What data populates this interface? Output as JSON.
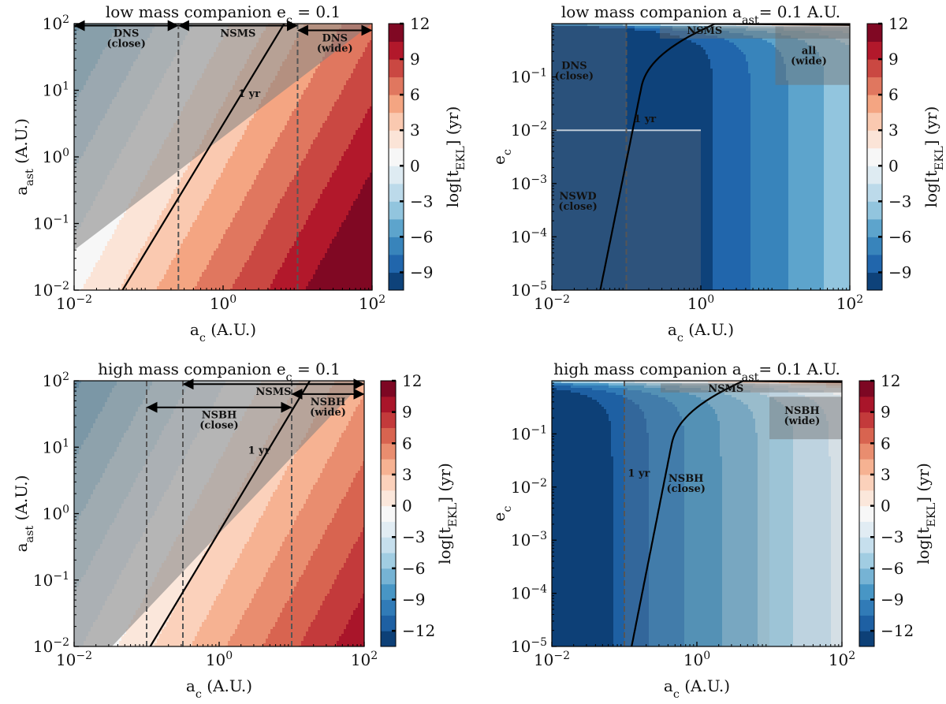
{
  "chart_data": [
    {
      "type": "heatmap",
      "panel": "top-left",
      "title": "low mass companion e_c = 0.1",
      "title_main": "low mass companion e",
      "title_sub": "c",
      "title_tail": " = 0.1",
      "xlabel_main": "a",
      "xlabel_sub": "c",
      "xlabel_tail": " (A.U.)",
      "ylabel_main": "a",
      "ylabel_sub": "ast",
      "ylabel_tail": " (A.U.)",
      "x_log_range": [
        -2,
        2
      ],
      "y_log_range": [
        -2,
        2
      ],
      "x_ticks": [
        {
          "base": "10",
          "exp": "−2",
          "v": -2
        },
        {
          "base": "10",
          "exp": "0",
          "v": 0
        },
        {
          "base": "10",
          "exp": "2",
          "v": 2
        }
      ],
      "y_ticks": [
        {
          "base": "10",
          "exp": "−2",
          "v": -2
        },
        {
          "base": "10",
          "exp": "−1",
          "v": -1
        },
        {
          "base": "10",
          "exp": "0",
          "v": 0
        },
        {
          "base": "10",
          "exp": "1",
          "v": 1
        },
        {
          "base": "10",
          "exp": "2",
          "v": 2
        }
      ],
      "model": "a",
      "offset": 4.2,
      "clim": [
        -10.5,
        12
      ],
      "levels": [
        -10.5,
        -9,
        -7.5,
        -6,
        -4.5,
        -3,
        -1.5,
        0,
        1.5,
        3,
        4.5,
        6,
        7.5,
        9,
        10.5,
        12
      ],
      "colorbar": {
        "label_main": "log[t",
        "label_sub": "EKL",
        "label_tail": "] (yr)",
        "ticks": [
          {
            "v": 12,
            "label": "12"
          },
          {
            "v": 9,
            "label": "9"
          },
          {
            "v": 6,
            "label": "6"
          },
          {
            "v": 3,
            "label": "3"
          },
          {
            "v": 0,
            "label": "0"
          },
          {
            "v": -3,
            "label": "−3"
          },
          {
            "v": -6,
            "label": "−6"
          },
          {
            "v": -9,
            "label": "−9"
          }
        ]
      },
      "one_yr_line": [
        [
          -1.35,
          -2
        ],
        [
          0.82,
          2
        ]
      ],
      "one_yr_label": "1 yr",
      "one_yr_label_at": [
        0.35,
        0.9
      ],
      "vlines": [
        -0.6,
        1.0
      ],
      "shaded_regions": [
        {
          "type": "upper-triangle",
          "x": [
            -2,
            2
          ],
          "boundary_y_at_xmin": -1.4,
          "boundary_y_at_xmax": 2,
          "x_from": -0.6
        }
      ],
      "arrows": [
        {
          "x1": -2,
          "x2": -0.6,
          "y": 1.97,
          "label": "DNS",
          "sub": "(close)"
        },
        {
          "x1": -0.6,
          "x2": 1.0,
          "y": 1.97,
          "label": "NSMS",
          "sub": ""
        },
        {
          "x1": 1.0,
          "x2": 2,
          "y": 1.9,
          "label": "DNS",
          "sub": "(wide)"
        }
      ],
      "boxes": []
    },
    {
      "type": "heatmap",
      "panel": "top-right",
      "title": "low mass companion a_ast = 0.1 A.U.",
      "title_main": "low mass companion a",
      "title_sub": "ast",
      "title_tail": "= 0.1 A.U.",
      "xlabel_main": "a",
      "xlabel_sub": "c",
      "xlabel_tail": " (A.U.)",
      "ylabel_main": "e",
      "ylabel_sub": "c",
      "ylabel_tail": "",
      "x_log_range": [
        -2,
        2
      ],
      "y_log_range": [
        -5,
        0
      ],
      "x_ticks": [
        {
          "base": "10",
          "exp": "−2",
          "v": -2
        },
        {
          "base": "10",
          "exp": "0",
          "v": 0
        },
        {
          "base": "10",
          "exp": "2",
          "v": 2
        }
      ],
      "y_ticks": [
        {
          "base": "10",
          "exp": "−5",
          "v": -5
        },
        {
          "base": "10",
          "exp": "−4",
          "v": -4
        },
        {
          "base": "10",
          "exp": "−3",
          "v": -3
        },
        {
          "base": "10",
          "exp": "−2",
          "v": -2
        },
        {
          "base": "10",
          "exp": "−1",
          "v": -1
        }
      ],
      "model": "e",
      "offset": -9.5,
      "clim": [
        -10.5,
        12
      ],
      "levels": [
        -10.5,
        -9,
        -7.5,
        -6,
        -4.5,
        -3,
        -1.5,
        0,
        1.5,
        3,
        4.5,
        6,
        7.5,
        9,
        10.5,
        12
      ],
      "colorbar": {
        "label_main": "log[t",
        "label_sub": "EKL",
        "label_tail": "] (yr)",
        "ticks": [
          {
            "v": 12,
            "label": "12"
          },
          {
            "v": 9,
            "label": "9"
          },
          {
            "v": 6,
            "label": "6"
          },
          {
            "v": 3,
            "label": "3"
          },
          {
            "v": 0,
            "label": "0"
          },
          {
            "v": -3,
            "label": "−3"
          },
          {
            "v": -6,
            "label": "−6"
          },
          {
            "v": -9,
            "label": "−9"
          }
        ]
      },
      "one_yr_curve_x0": -1.35,
      "one_yr_label": "1 yr",
      "one_yr_label_at": [
        -0.75,
        -1.85
      ],
      "vlines": [
        -1.0
      ],
      "shaded_regions": [
        {
          "type": "rect",
          "x": [
            -2,
            -1.0
          ],
          "y": [
            -5,
            0
          ],
          "opacity": 0.25
        },
        {
          "type": "rect",
          "x": [
            -1.0,
            0
          ],
          "y": [
            -5,
            -2.0
          ],
          "opacity": 0.28
        }
      ],
      "highlight_line_y": -2.0,
      "boxes": [
        {
          "x": [
            -0.55,
            2
          ],
          "y": [
            -0.28,
            -0.05
          ],
          "label": "NSMS",
          "sub": "",
          "label_at": [
            0.05,
            -0.12
          ]
        },
        {
          "x": [
            1.0,
            2
          ],
          "y": [
            -1.15,
            -0.05
          ],
          "label": "all",
          "sub": "(wide)",
          "label_at": [
            1.45,
            -0.6
          ]
        }
      ],
      "texts": [
        {
          "label": "DNS",
          "sub": "(close)",
          "at": [
            -1.7,
            -0.85
          ]
        },
        {
          "label": "NSWD",
          "sub": "(close)",
          "at": [
            -1.65,
            -3.3
          ]
        }
      ],
      "arrows": []
    },
    {
      "type": "heatmap",
      "panel": "bottom-left",
      "title": "high mass companion e_c = 0.1",
      "title_main": "high mass companion e",
      "title_sub": "c",
      "title_tail": " = 0.1",
      "xlabel_main": "a",
      "xlabel_sub": "c",
      "xlabel_tail": " (A.U.)",
      "ylabel_main": "a",
      "ylabel_sub": "ast",
      "ylabel_tail": " (A.U.)",
      "x_log_range": [
        -2,
        2
      ],
      "y_log_range": [
        -2,
        2
      ],
      "x_ticks": [
        {
          "base": "10",
          "exp": "−2",
          "v": -2
        },
        {
          "base": "10",
          "exp": "0",
          "v": 0
        },
        {
          "base": "10",
          "exp": "2",
          "v": 2
        }
      ],
      "y_ticks": [
        {
          "base": "10",
          "exp": "−2",
          "v": -2
        },
        {
          "base": "10",
          "exp": "−1",
          "v": -1
        },
        {
          "base": "10",
          "exp": "0",
          "v": 0
        },
        {
          "base": "10",
          "exp": "1",
          "v": 1
        },
        {
          "base": "10",
          "exp": "2",
          "v": 2
        }
      ],
      "model": "a",
      "offset": 1.2,
      "clim": [
        -13.5,
        12
      ],
      "levels": [
        -13.5,
        -12,
        -10.5,
        -9,
        -7.5,
        -6,
        -4.5,
        -3,
        -1.5,
        0,
        1.5,
        3,
        4.5,
        6,
        7.5,
        9,
        10.5,
        12
      ],
      "colorbar": {
        "label_main": "log[t",
        "label_sub": "EKL",
        "label_tail": "] (yr)",
        "ticks": [
          {
            "v": 12,
            "label": "12"
          },
          {
            "v": 9,
            "label": "9"
          },
          {
            "v": 6,
            "label": "6"
          },
          {
            "v": 3,
            "label": "3"
          },
          {
            "v": 0,
            "label": "0"
          },
          {
            "v": -3,
            "label": "−3"
          },
          {
            "v": -6,
            "label": "−6"
          },
          {
            "v": -9,
            "label": "−9"
          },
          {
            "v": -12,
            "label": "−12"
          }
        ]
      },
      "one_yr_line": [
        [
          -0.95,
          -2
        ],
        [
          1.25,
          2
        ]
      ],
      "one_yr_label": "1 yr",
      "one_yr_label_at": [
        0.55,
        0.9
      ],
      "vlines": [
        -1.0,
        -0.5,
        1.0
      ],
      "shaded_regions": [
        {
          "type": "upper-triangle",
          "x": [
            -2,
            2
          ],
          "boundary_y_at_xmin": -2.6,
          "boundary_y_at_xmax": 2,
          "x_from": -0.5
        }
      ],
      "arrows": [
        {
          "x1": -0.5,
          "x2": 2,
          "y": 1.95,
          "label": "NSMS",
          "sub": ""
        },
        {
          "x1": -1.0,
          "x2": 1.0,
          "y": 1.6,
          "label": "NSBH",
          "sub": "(close)"
        },
        {
          "x1": 1.0,
          "x2": 2,
          "y": 1.8,
          "label": "NSBH",
          "sub": "(wide)"
        }
      ],
      "boxes": []
    },
    {
      "type": "heatmap",
      "panel": "bottom-right",
      "title": "high mass companion a_ast = 0.1 A.U.",
      "title_main": "high mass companion a",
      "title_sub": "ast",
      "title_tail": "= 0.1 A.U.",
      "xlabel_main": "a",
      "xlabel_sub": "c",
      "xlabel_tail": " (A.U.)",
      "ylabel_main": "e",
      "ylabel_sub": "c",
      "ylabel_tail": "",
      "x_log_range": [
        -2,
        2
      ],
      "y_log_range": [
        -5,
        0
      ],
      "x_ticks": [
        {
          "base": "10",
          "exp": "−2",
          "v": -2
        },
        {
          "base": "10",
          "exp": "0",
          "v": 0
        },
        {
          "base": "10",
          "exp": "2",
          "v": 2
        }
      ],
      "y_ticks": [
        {
          "base": "10",
          "exp": "−5",
          "v": -5
        },
        {
          "base": "10",
          "exp": "−4",
          "v": -4
        },
        {
          "base": "10",
          "exp": "−3",
          "v": -3
        },
        {
          "base": "10",
          "exp": "−2",
          "v": -2
        },
        {
          "base": "10",
          "exp": "−1",
          "v": -1
        }
      ],
      "model": "e",
      "offset": -8.5,
      "clim": [
        -13.5,
        12
      ],
      "levels": [
        -13.5,
        -12,
        -10.5,
        -9,
        -7.5,
        -6,
        -4.5,
        -3,
        -1.5,
        0,
        1.5,
        3,
        4.5,
        6,
        7.5,
        9,
        10.5,
        12
      ],
      "colorbar": {
        "label_main": "log[t",
        "label_sub": "EKL",
        "label_tail": "] (yr)",
        "ticks": [
          {
            "v": 12,
            "label": "12"
          },
          {
            "v": 9,
            "label": "9"
          },
          {
            "v": 6,
            "label": "6"
          },
          {
            "v": 3,
            "label": "3"
          },
          {
            "v": 0,
            "label": "0"
          },
          {
            "v": -3,
            "label": "−3"
          },
          {
            "v": -6,
            "label": "−6"
          },
          {
            "v": -9,
            "label": "−9"
          },
          {
            "v": -12,
            "label": "−12"
          }
        ]
      },
      "one_yr_curve_x0": -0.9,
      "one_yr_label": "1 yr",
      "one_yr_label_at": [
        -0.8,
        -1.8
      ],
      "vlines": [
        -1.0
      ],
      "shaded_regions": [
        {
          "type": "rect",
          "x": [
            -1.0,
            1.0
          ],
          "y": [
            -5,
            0
          ],
          "opacity": 0.22
        },
        {
          "type": "rect",
          "x": [
            1.0,
            2
          ],
          "y": [
            -5,
            0
          ],
          "opacity": 0.12
        }
      ],
      "boxes": [
        {
          "x": [
            -0.5,
            2
          ],
          "y": [
            -0.22,
            -0.05
          ],
          "label": "NSMS",
          "sub": "",
          "label_at": [
            0.4,
            -0.13
          ]
        },
        {
          "x": [
            1.0,
            2
          ],
          "y": [
            -1.1,
            -0.3
          ],
          "label": "NSBH",
          "sub": "(wide)",
          "label_at": [
            1.45,
            -0.65
          ]
        }
      ],
      "texts": [
        {
          "label": "NSBH",
          "sub": "(close)",
          "at": [
            -0.15,
            -1.9
          ]
        }
      ],
      "arrows": []
    }
  ]
}
